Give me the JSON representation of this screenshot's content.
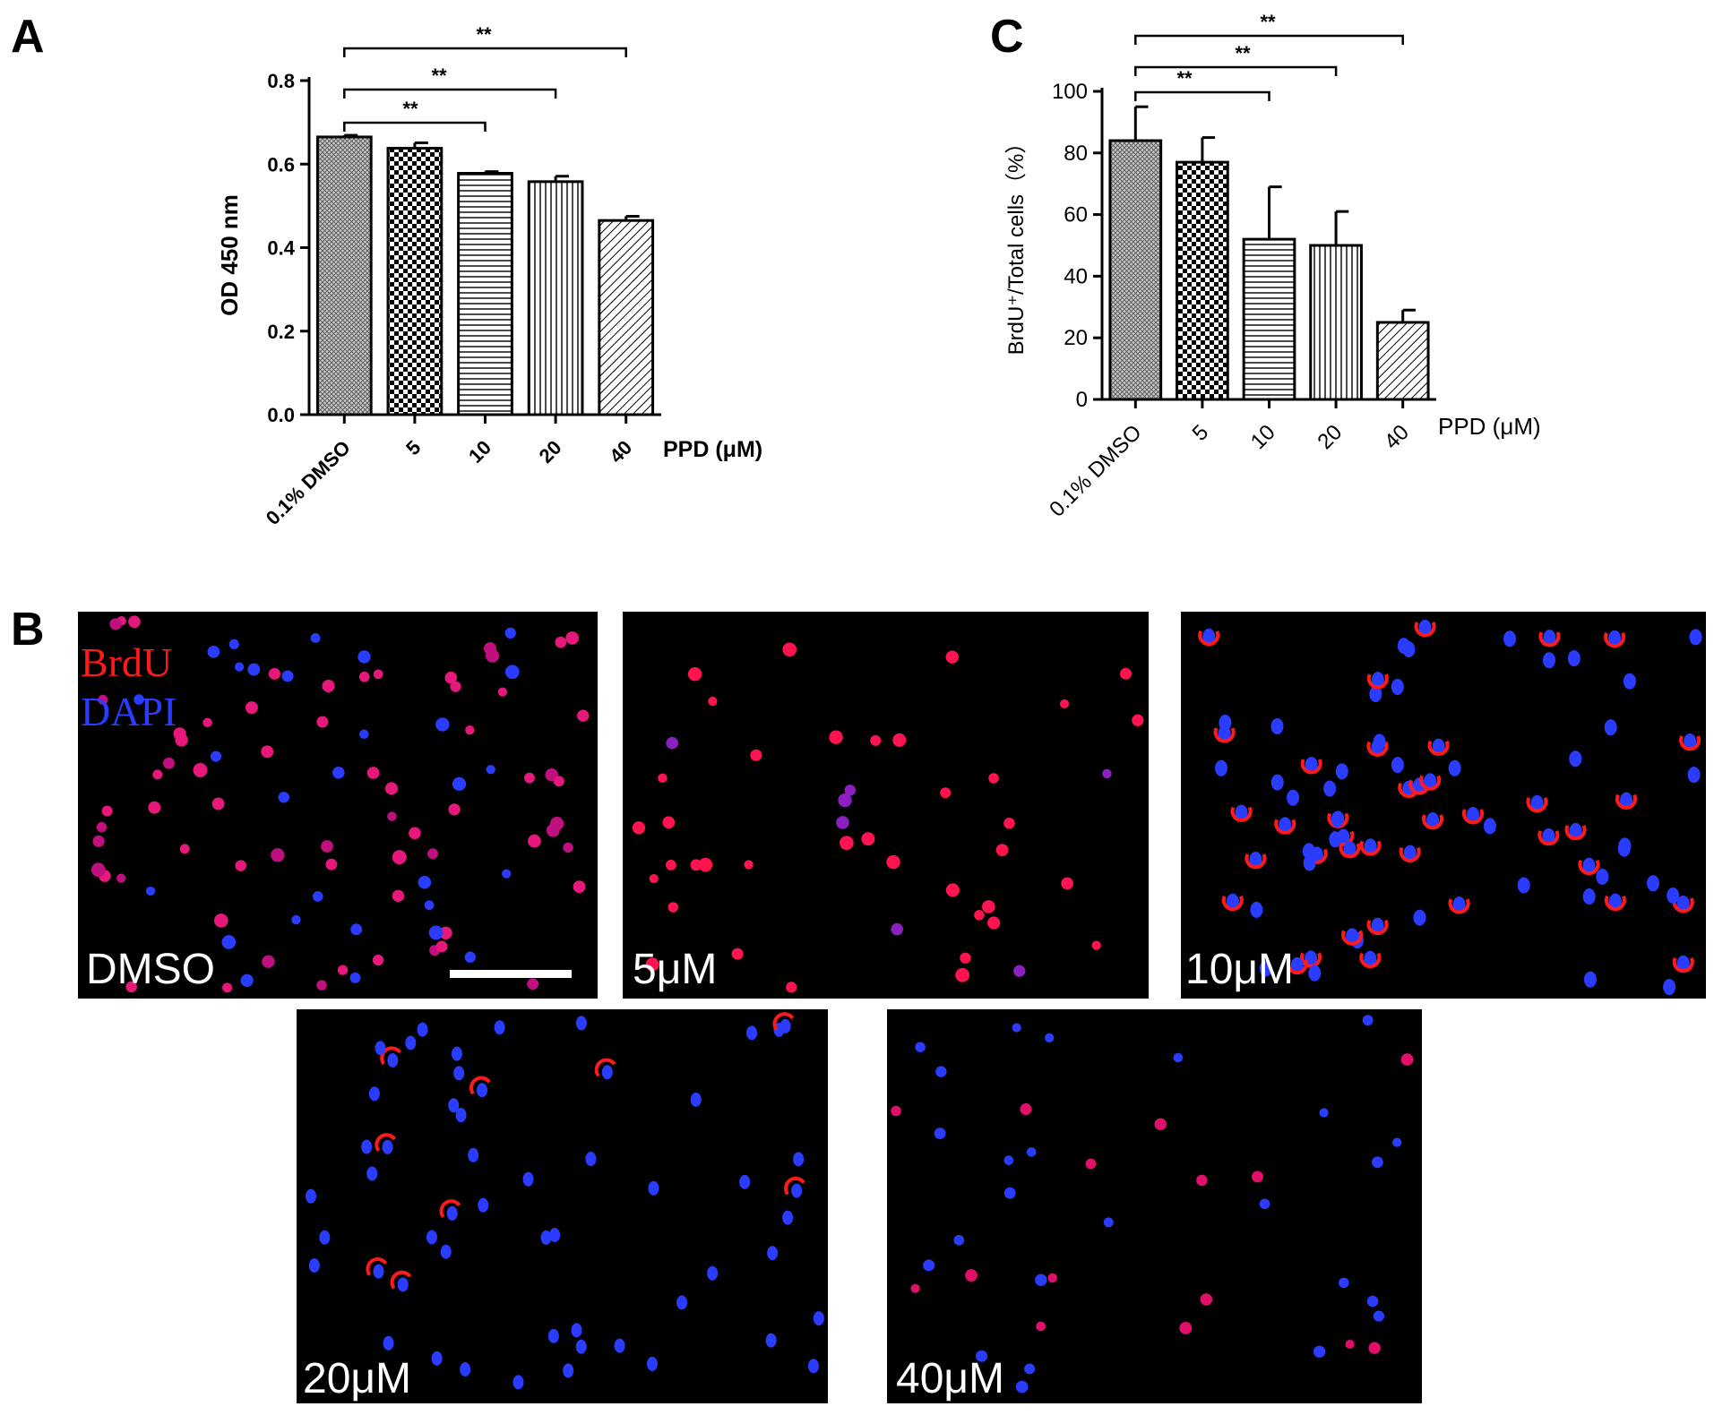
{
  "figure": {
    "panel_a_label": "A",
    "panel_b_label": "B",
    "panel_c_label": "C"
  },
  "chart_data": [
    {
      "panel": "A",
      "type": "bar",
      "ylabel": "OD 450 nm",
      "xlabel": "PPD (μM)",
      "categories": [
        "0.1% DMSO",
        "5",
        "10",
        "20",
        "40"
      ],
      "values": [
        0.665,
        0.638,
        0.578,
        0.558,
        0.465
      ],
      "errors": [
        0.004,
        0.013,
        0.004,
        0.013,
        0.01
      ],
      "ylim": [
        0,
        0.8
      ],
      "yticks": [
        "0.0",
        "0.2",
        "0.4",
        "0.6",
        "0.8"
      ],
      "significance": [
        {
          "from": "0.1% DMSO",
          "to": "10",
          "label": "**"
        },
        {
          "from": "0.1% DMSO",
          "to": "20",
          "label": "**"
        },
        {
          "from": "0.1% DMSO",
          "to": "40",
          "label": "**"
        }
      ],
      "bar_fill_patterns": [
        "fine-crosshatch",
        "checkerboard",
        "horizontal-lines",
        "vertical-lines",
        "diagonal-lines"
      ],
      "style": "bold"
    },
    {
      "panel": "C",
      "type": "bar",
      "ylabel": "BrdU⁺/Total cells（%）",
      "xlabel": "PPD (μM)",
      "categories": [
        "0.1% DMSO",
        "5",
        "10",
        "20",
        "40"
      ],
      "values": [
        84,
        77,
        52,
        50,
        25
      ],
      "errors": [
        11,
        8,
        17,
        11,
        4
      ],
      "ylim": [
        0,
        100
      ],
      "yticks": [
        "0",
        "20",
        "40",
        "60",
        "80",
        "100"
      ],
      "significance": [
        {
          "from": "0.1% DMSO",
          "to": "10",
          "label": "**"
        },
        {
          "from": "0.1% DMSO",
          "to": "20",
          "label": "**"
        },
        {
          "from": "0.1% DMSO",
          "to": "40",
          "label": "**"
        }
      ],
      "bar_fill_patterns": [
        "fine-crosshatch",
        "checkerboard",
        "horizontal-lines",
        "vertical-lines",
        "diagonal-lines"
      ],
      "style": "regular"
    }
  ],
  "micrographs": {
    "legend": {
      "brdu": "BrdU",
      "dapi": "DAPI"
    },
    "colors": {
      "brdu": "#ff1a1a",
      "dapi": "#2a3cff",
      "background": "#000000"
    },
    "panels": [
      {
        "label": "DMSO"
      },
      {
        "label": "5μM"
      },
      {
        "label": "10μM"
      },
      {
        "label": "20μM"
      },
      {
        "label": "40μM"
      }
    ]
  }
}
